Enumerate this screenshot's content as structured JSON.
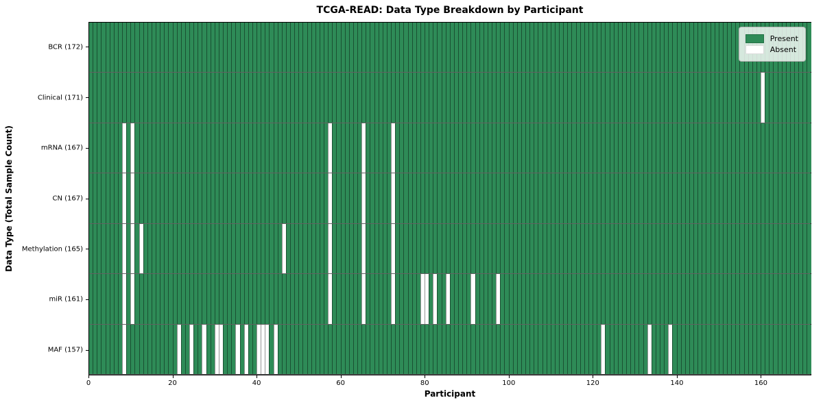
{
  "title": "TCGA-READ: Data Type Breakdown by Participant",
  "xlabel": "Participant",
  "ylabel": "Data Type (Total Sample Count)",
  "legend": {
    "present_label": "Present",
    "absent_label": "Absent"
  },
  "colors": {
    "present": "#2e8b57",
    "absent": "#ffffff",
    "gridline": "rgba(0,0,0,0.42)",
    "legend_border": "#b3b3b3"
  },
  "chart_data": {
    "type": "heatmap",
    "x_axis": {
      "label": "Participant",
      "min": 0,
      "max": 172,
      "ticks": [
        0,
        20,
        40,
        60,
        80,
        100,
        120,
        140,
        160
      ]
    },
    "n_participants": 172,
    "legend_position": "upper right",
    "rows": [
      {
        "label": "BCR (172)",
        "data_type": "BCR",
        "total": 172,
        "absent": []
      },
      {
        "label": "Clinical (171)",
        "data_type": "Clinical",
        "total": 171,
        "absent": [
          160
        ]
      },
      {
        "label": "mRNA (167)",
        "data_type": "mRNA",
        "total": 167,
        "absent": [
          8,
          10,
          57,
          65,
          72
        ]
      },
      {
        "label": "CN (167)",
        "data_type": "CN",
        "total": 167,
        "absent": [
          8,
          10,
          57,
          65,
          72
        ]
      },
      {
        "label": "Methylation (165)",
        "data_type": "Methylation",
        "total": 165,
        "absent": [
          8,
          10,
          12,
          46,
          57,
          65,
          72
        ]
      },
      {
        "label": "miR (161)",
        "data_type": "miR",
        "total": 161,
        "absent": [
          8,
          10,
          57,
          65,
          72,
          79,
          80,
          82,
          85,
          91,
          97
        ]
      },
      {
        "label": "MAF (157)",
        "data_type": "MAF",
        "total": 157,
        "absent": [
          8,
          21,
          24,
          27,
          30,
          31,
          35,
          37,
          40,
          41,
          42,
          44,
          122,
          133,
          138
        ]
      }
    ]
  }
}
